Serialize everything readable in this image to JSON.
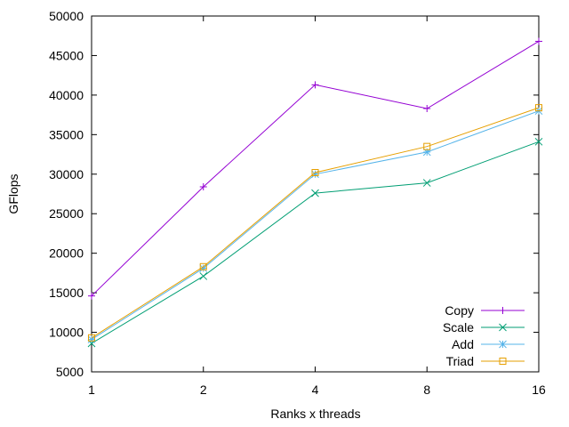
{
  "chart_data": {
    "type": "line",
    "xlabel": "Ranks x threads",
    "ylabel": "GFlops",
    "x_scale": "log2",
    "categories": [
      "1",
      "2",
      "4",
      "8",
      "16"
    ],
    "x": [
      1,
      2,
      4,
      8,
      16
    ],
    "ylim": [
      5000,
      50000
    ],
    "y_ticks": [
      5000,
      10000,
      15000,
      20000,
      25000,
      30000,
      35000,
      40000,
      45000,
      50000
    ],
    "grid": false,
    "legend_position": "bottom-right",
    "series": [
      {
        "name": "Copy",
        "color": "#9400d3",
        "marker": "plus",
        "values": [
          14600,
          28400,
          41300,
          38300,
          46800
        ]
      },
      {
        "name": "Scale",
        "color": "#009e73",
        "marker": "cross",
        "values": [
          8600,
          17100,
          27600,
          28900,
          34100
        ]
      },
      {
        "name": "Add",
        "color": "#56b4e9",
        "marker": "star",
        "values": [
          9100,
          18100,
          30000,
          32800,
          38000
        ]
      },
      {
        "name": "Triad",
        "color": "#e69f00",
        "marker": "open-square",
        "values": [
          9300,
          18300,
          30200,
          33500,
          38400
        ]
      }
    ]
  }
}
